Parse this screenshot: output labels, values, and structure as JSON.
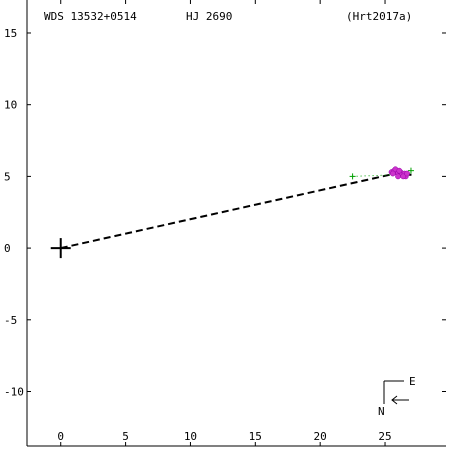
{
  "header": {
    "wds_id": "WDS 13532+0514",
    "discoverer": "HJ 2690",
    "reference": "(Hrt2017a)"
  },
  "compass": {
    "east_label": "E",
    "north_label": "N"
  },
  "chart_data": {
    "type": "scatter",
    "xlim": [
      -2.6,
      29.7
    ],
    "ylim": [
      -13.8,
      17.3
    ],
    "x_ticks": [
      0,
      5,
      10,
      15,
      20,
      25
    ],
    "y_ticks": [
      -10,
      -5,
      0,
      5,
      10,
      15
    ],
    "x_tick_labels": [
      "0",
      "5",
      "10",
      "15",
      "20",
      "25"
    ],
    "y_tick_labels": [
      "-10",
      "-5",
      "0",
      "5",
      "10",
      "15"
    ],
    "primary": [
      0,
      0
    ],
    "orbit_line": {
      "style": "dashed",
      "points": [
        [
          0,
          0
        ],
        [
          25.8,
          5.2
        ],
        [
          27.1,
          5.1
        ]
      ]
    },
    "series": [
      {
        "marker": "plus",
        "color": "#00a000",
        "points": [
          [
            22.5,
            5.0
          ],
          [
            27.0,
            5.4
          ]
        ]
      },
      {
        "marker": "dots",
        "color": "#cc33cc",
        "points": [
          [
            25.5,
            5.3
          ],
          [
            25.7,
            5.4
          ],
          [
            25.9,
            5.3
          ],
          [
            26.0,
            5.2
          ],
          [
            26.2,
            5.3
          ],
          [
            26.3,
            5.1
          ],
          [
            26.5,
            5.2
          ],
          [
            26.6,
            5.0
          ],
          [
            25.8,
            5.5
          ],
          [
            26.1,
            5.4
          ],
          [
            26.4,
            5.0
          ],
          [
            26.7,
            5.2
          ],
          [
            25.6,
            5.2
          ],
          [
            26.0,
            5.0
          ]
        ]
      },
      {
        "marker": "residual",
        "color": "#00a000",
        "style": "dotted",
        "from": [
          22.5,
          5.0
        ],
        "to": [
          25.4,
          5.1
        ]
      }
    ]
  }
}
